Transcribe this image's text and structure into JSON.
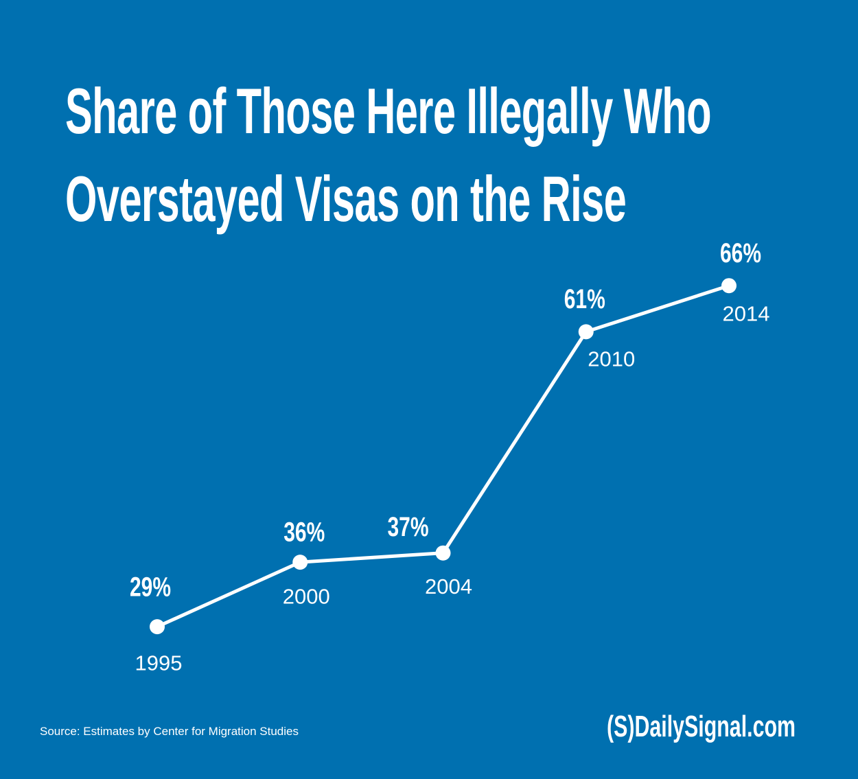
{
  "chart_data": {
    "type": "line",
    "title": "Share of Those Here Illegally Who Overstayed Visas on the Rise",
    "categories": [
      "1995",
      "2000",
      "2004",
      "2010",
      "2014"
    ],
    "values": [
      29,
      36,
      37,
      61,
      66
    ],
    "value_labels": [
      "29%",
      "36%",
      "37%",
      "61%",
      "66%"
    ],
    "color": "#ffffff",
    "ylim": [
      0,
      100
    ],
    "source": "Source: Estimates by Center for Migration Studies",
    "brand": "(S)DailySignal.com"
  }
}
